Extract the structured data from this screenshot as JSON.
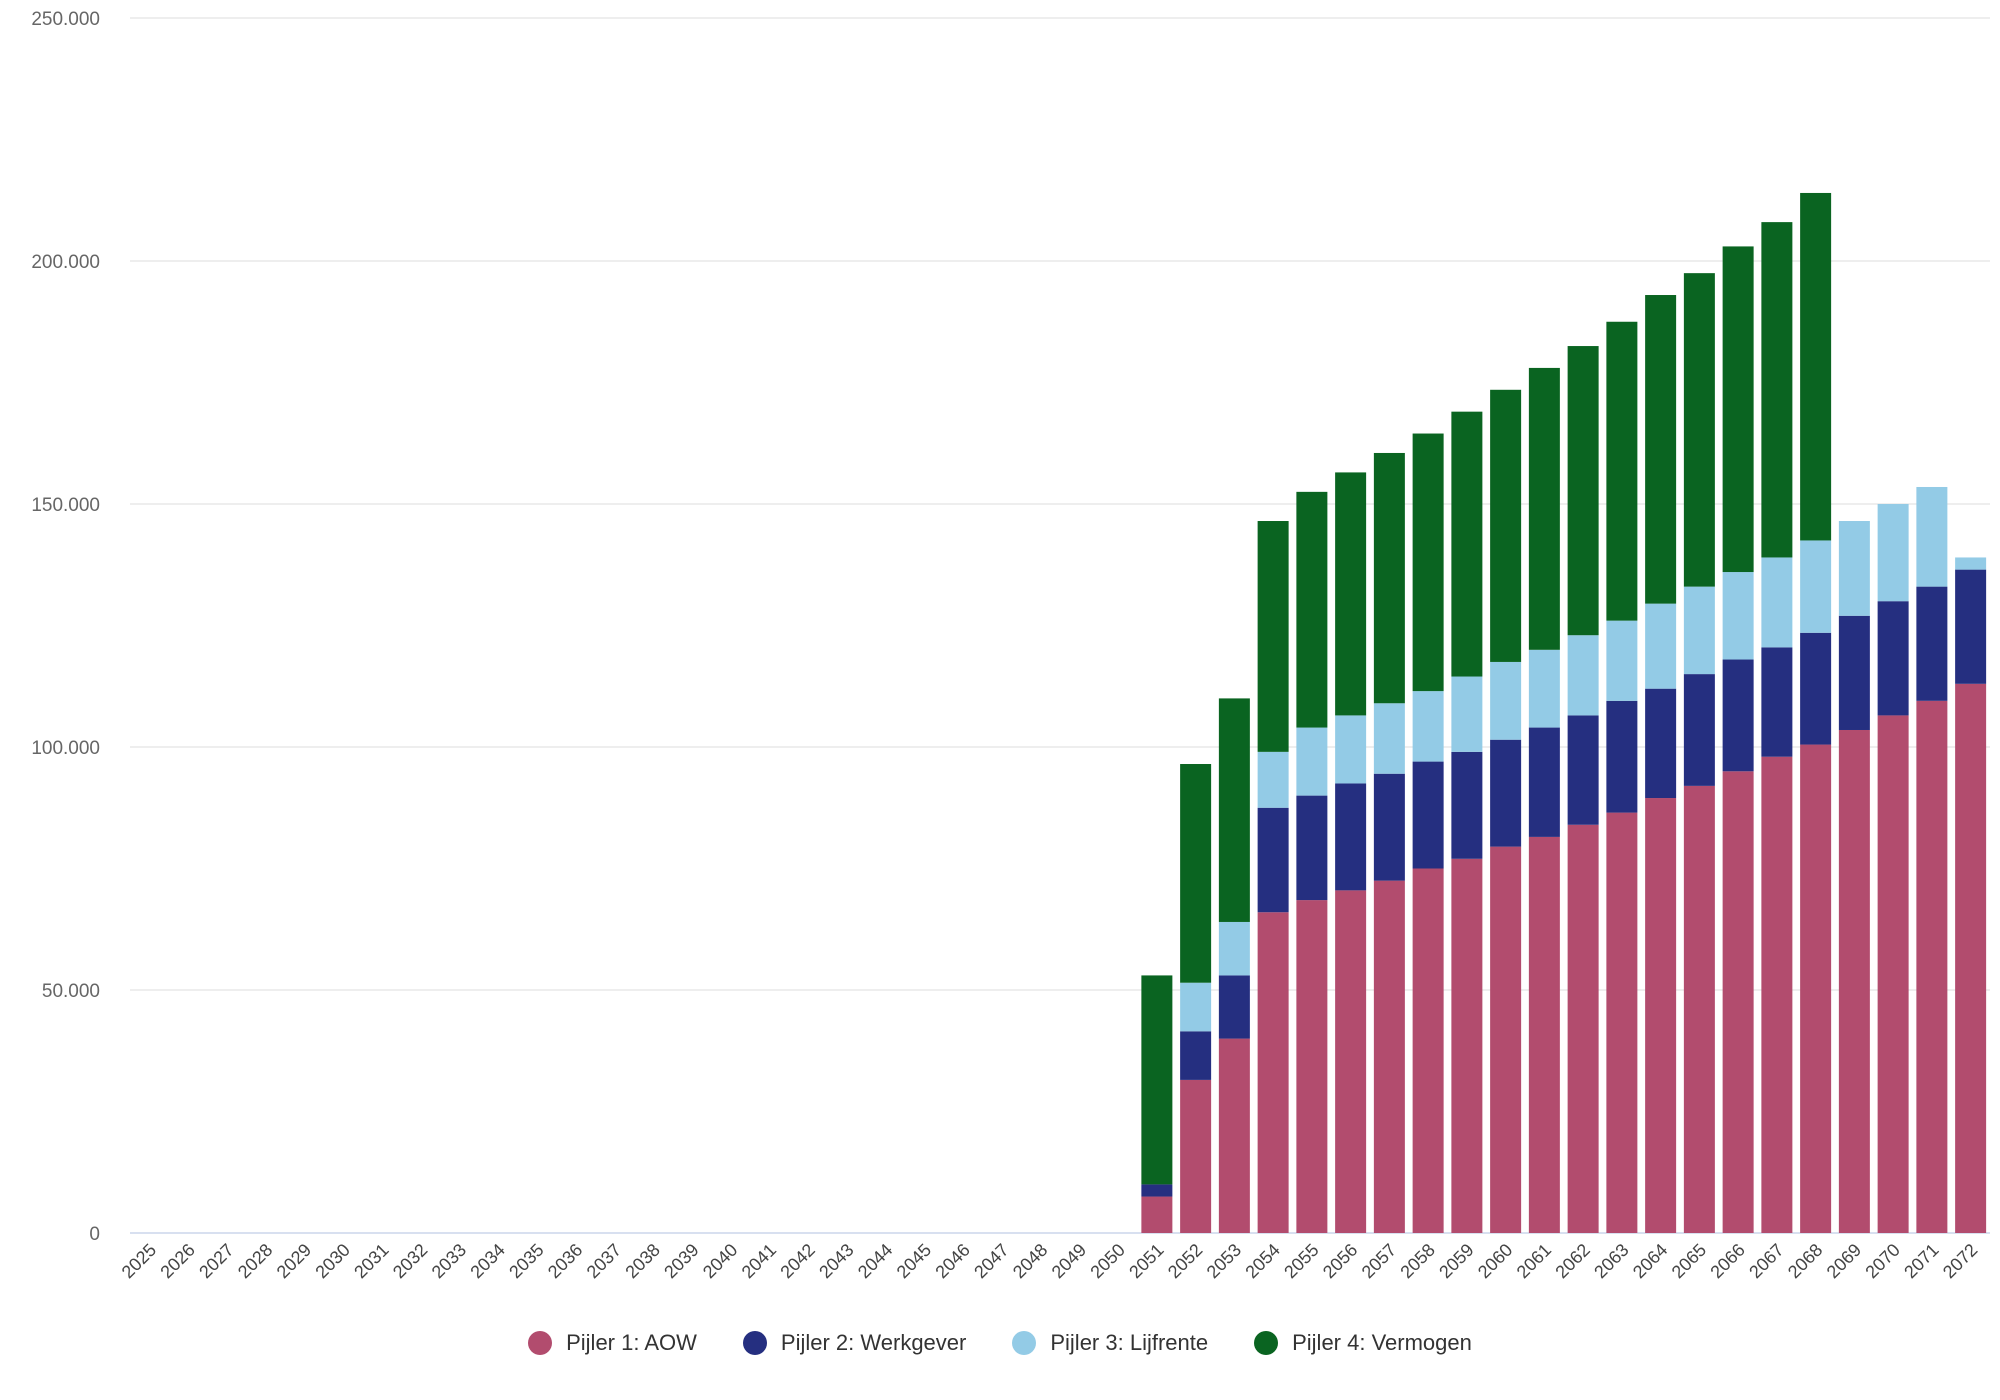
{
  "chart_data": {
    "type": "bar",
    "stacked": true,
    "title": "",
    "xlabel": "",
    "ylabel": "",
    "ylim": [
      0,
      250000
    ],
    "y_ticks": [
      0,
      50000,
      100000,
      150000,
      200000,
      250000
    ],
    "y_tick_labels": [
      "0",
      "50.000",
      "100.000",
      "150.000",
      "200.000",
      "250.000"
    ],
    "grid": true,
    "legend_position": "bottom-center",
    "categories": [
      "2025",
      "2026",
      "2027",
      "2028",
      "2029",
      "2030",
      "2031",
      "2032",
      "2033",
      "2034",
      "2035",
      "2036",
      "2037",
      "2038",
      "2039",
      "2040",
      "2041",
      "2042",
      "2043",
      "2044",
      "2045",
      "2046",
      "2047",
      "2048",
      "2049",
      "2050",
      "2051",
      "2052",
      "2053",
      "2054",
      "2055",
      "2056",
      "2057",
      "2058",
      "2059",
      "2060",
      "2061",
      "2062",
      "2063",
      "2064",
      "2065",
      "2066",
      "2067",
      "2068",
      "2069",
      "2070",
      "2071",
      "2072"
    ],
    "series": [
      {
        "name": "Pijler 1: AOW",
        "color": "#b24c6e",
        "values": [
          0,
          0,
          0,
          0,
          0,
          0,
          0,
          0,
          0,
          0,
          0,
          0,
          0,
          0,
          0,
          0,
          0,
          0,
          0,
          0,
          0,
          0,
          0,
          0,
          0,
          0,
          7500,
          31500,
          40000,
          66000,
          68500,
          70500,
          72500,
          75000,
          77000,
          79500,
          81500,
          84000,
          86500,
          89500,
          92000,
          95000,
          98000,
          100500,
          103500,
          106500,
          109500,
          113000
        ]
      },
      {
        "name": "Pijler 2: Werkgever",
        "color": "#252f80",
        "values": [
          0,
          0,
          0,
          0,
          0,
          0,
          0,
          0,
          0,
          0,
          0,
          0,
          0,
          0,
          0,
          0,
          0,
          0,
          0,
          0,
          0,
          0,
          0,
          0,
          0,
          0,
          2500,
          10000,
          13000,
          21500,
          21500,
          22000,
          22000,
          22000,
          22000,
          22000,
          22500,
          22500,
          23000,
          22500,
          23000,
          23000,
          22500,
          23000,
          23500,
          23500,
          23500,
          23500
        ]
      },
      {
        "name": "Pijler 3: Lijfrente",
        "color": "#93cbe6",
        "values": [
          0,
          0,
          0,
          0,
          0,
          0,
          0,
          0,
          0,
          0,
          0,
          0,
          0,
          0,
          0,
          0,
          0,
          0,
          0,
          0,
          0,
          0,
          0,
          0,
          0,
          0,
          0,
          10000,
          11000,
          11500,
          14000,
          14000,
          14500,
          14500,
          15500,
          16000,
          16000,
          16500,
          16500,
          17500,
          18000,
          18000,
          18500,
          19000,
          19500,
          20000,
          20500,
          2500
        ]
      },
      {
        "name": "Pijler 4: Vermogen",
        "color": "#0a6421",
        "values": [
          0,
          0,
          0,
          0,
          0,
          0,
          0,
          0,
          0,
          0,
          0,
          0,
          0,
          0,
          0,
          0,
          0,
          0,
          0,
          0,
          0,
          0,
          0,
          0,
          0,
          0,
          43000,
          45000,
          46000,
          47500,
          48500,
          50000,
          51500,
          53000,
          54500,
          56000,
          58000,
          59500,
          61500,
          63500,
          64500,
          67000,
          69000,
          71500,
          0,
          0,
          0,
          0
        ]
      }
    ]
  }
}
